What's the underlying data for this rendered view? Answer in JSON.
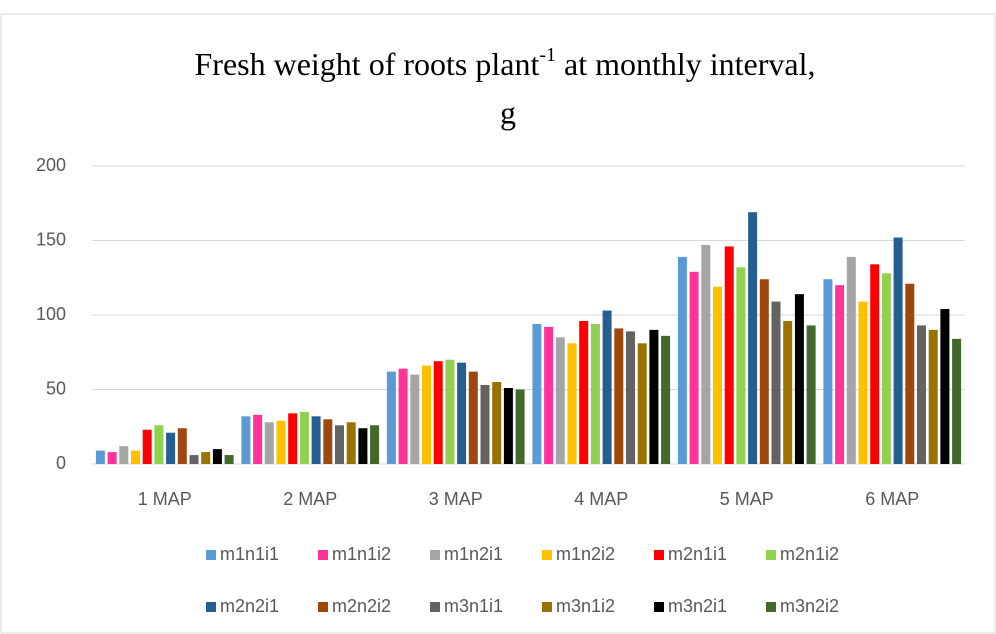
{
  "chart_data": {
    "type": "bar",
    "title": [
      "Fresh  weight of roots  plant",
      "-1",
      " at monthly interval,",
      "g"
    ],
    "categories": [
      "1 MAP",
      "2 MAP",
      "3 MAP",
      "4 MAP",
      "5 MAP",
      "6 MAP"
    ],
    "series": [
      {
        "name": "m1n1i1",
        "color": "#5b9bd5",
        "values": [
          9,
          32,
          62,
          94,
          139,
          124
        ]
      },
      {
        "name": "m1n1i2",
        "color": "#ff3399",
        "values": [
          8,
          33,
          64,
          92,
          129,
          120
        ]
      },
      {
        "name": "m1n2i1",
        "color": "#a5a5a5",
        "values": [
          12,
          28,
          60,
          85,
          147,
          139
        ]
      },
      {
        "name": "m1n2i2",
        "color": "#ffc000",
        "values": [
          9,
          29,
          66,
          81,
          119,
          109
        ]
      },
      {
        "name": "m2n1i1",
        "color": "#ff0000",
        "values": [
          23,
          34,
          69,
          96,
          146,
          134
        ]
      },
      {
        "name": "m2n1i2",
        "color": "#92d050",
        "values": [
          26,
          35,
          70,
          94,
          132,
          128
        ]
      },
      {
        "name": "m2n2i1",
        "color": "#255e91",
        "values": [
          21,
          32,
          68,
          103,
          169,
          152
        ]
      },
      {
        "name": "m2n2i2",
        "color": "#9e480e",
        "values": [
          24,
          30,
          62,
          91,
          124,
          121
        ]
      },
      {
        "name": "m3n1i1",
        "color": "#636363",
        "values": [
          6,
          26,
          53,
          89,
          109,
          93
        ]
      },
      {
        "name": "m3n1i2",
        "color": "#997300",
        "values": [
          8,
          28,
          55,
          81,
          96,
          90
        ]
      },
      {
        "name": "m3n2i1",
        "color": "#000000",
        "values": [
          10,
          24,
          51,
          90,
          114,
          104
        ]
      },
      {
        "name": "m3n2i2",
        "color": "#43682b",
        "values": [
          6,
          26,
          50,
          86,
          93,
          84
        ]
      }
    ],
    "ylim": [
      0,
      200
    ],
    "yticks": [
      0,
      50,
      100,
      150,
      200
    ],
    "grid": true,
    "legend": "bottom"
  }
}
